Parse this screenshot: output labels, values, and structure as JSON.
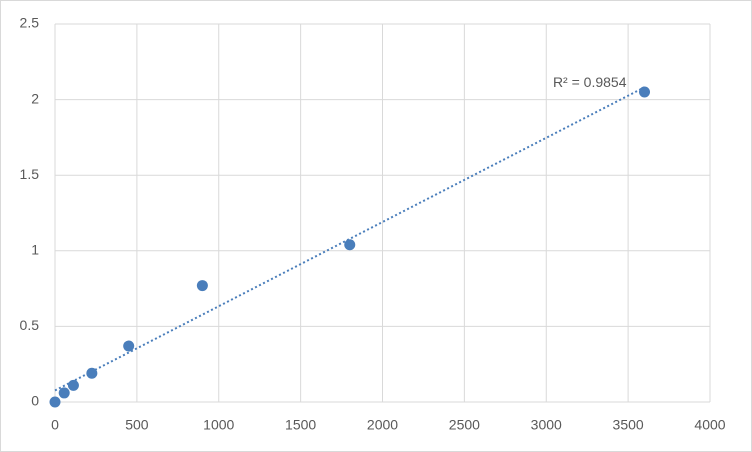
{
  "chart_data": {
    "type": "scatter",
    "x": [
      0,
      56.25,
      112.5,
      225,
      450,
      900,
      1800,
      3600
    ],
    "series": [
      {
        "values": [
          0,
          0.06,
          0.11,
          0.19,
          0.37,
          0.77,
          1.04,
          2.05
        ],
        "color": "#4a7ebb"
      }
    ],
    "trendline": "linear",
    "annotation": "R² = 0.9854",
    "xlim": [
      0,
      4000
    ],
    "xticks": [
      0,
      500,
      1000,
      1500,
      2000,
      2500,
      3000,
      3500,
      4000
    ],
    "ylim": [
      0,
      2.5
    ],
    "yticks": [
      0,
      0.5,
      1,
      1.5,
      2,
      2.5
    ],
    "grid": true
  }
}
